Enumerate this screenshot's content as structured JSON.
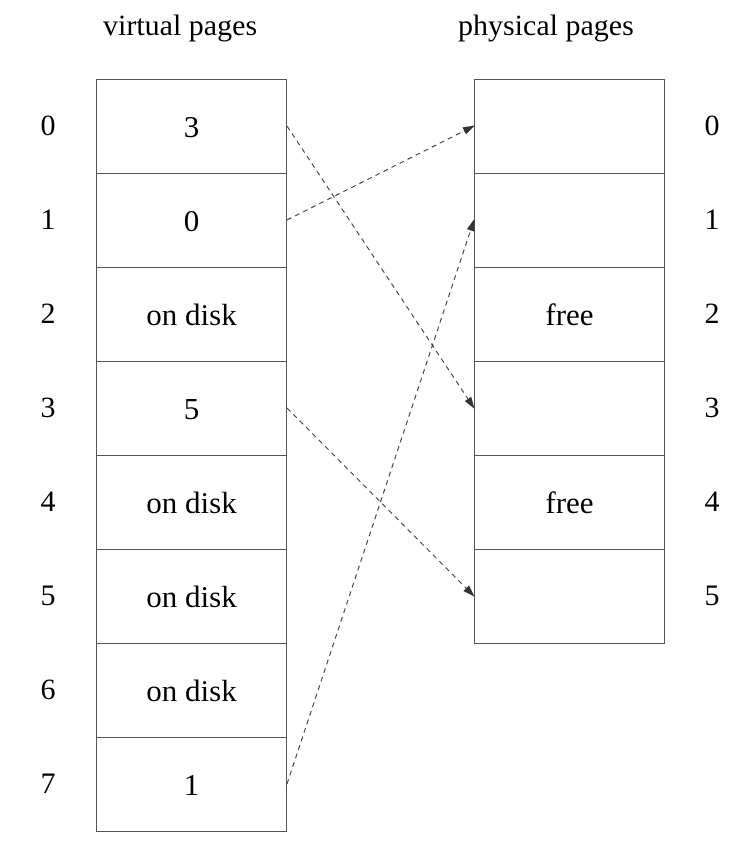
{
  "titles": {
    "virtual": "virtual pages",
    "physical": "physical pages"
  },
  "virtual_pages": [
    {
      "index": "0",
      "content": "3"
    },
    {
      "index": "1",
      "content": "0"
    },
    {
      "index": "2",
      "content": "on disk"
    },
    {
      "index": "3",
      "content": "5"
    },
    {
      "index": "4",
      "content": "on disk"
    },
    {
      "index": "5",
      "content": "on disk"
    },
    {
      "index": "6",
      "content": "on disk"
    },
    {
      "index": "7",
      "content": "1"
    }
  ],
  "physical_pages": [
    {
      "index": "0",
      "content": ""
    },
    {
      "index": "1",
      "content": ""
    },
    {
      "index": "2",
      "content": "free"
    },
    {
      "index": "3",
      "content": ""
    },
    {
      "index": "4",
      "content": "free"
    },
    {
      "index": "5",
      "content": ""
    }
  ],
  "mappings": [
    {
      "from_virtual": 0,
      "to_physical": 3
    },
    {
      "from_virtual": 1,
      "to_physical": 0
    },
    {
      "from_virtual": 3,
      "to_physical": 5
    },
    {
      "from_virtual": 7,
      "to_physical": 1
    }
  ],
  "colors": {
    "border": "#555555",
    "arrow": "#333333",
    "text": "#000000"
  }
}
